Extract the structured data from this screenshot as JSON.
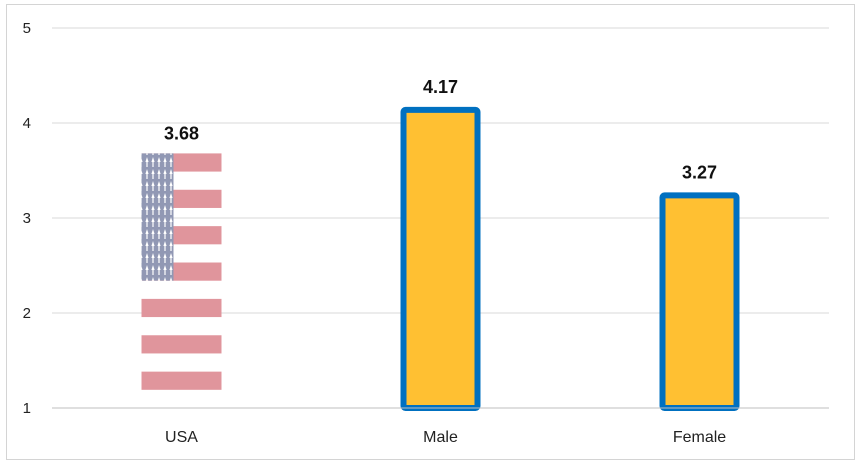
{
  "chart_data": {
    "type": "bar",
    "categories": [
      "USA",
      "Male",
      "Female"
    ],
    "values": [
      3.68,
      4.17,
      3.27
    ],
    "data_labels": [
      "3.68",
      "4.17",
      "3.27"
    ],
    "ylim": [
      1,
      5
    ],
    "yticks": [
      1,
      2,
      3,
      4,
      5
    ],
    "grid": true,
    "legend": "none",
    "bar_styles": [
      "us-flag-fill",
      "solid-fill",
      "solid-fill"
    ]
  },
  "colors": {
    "bar_fill": "#FFC032",
    "bar_border": "#0070C0",
    "flag_stripe": "#E0959C",
    "flag_canton": "#9198B4",
    "gridline": "#D9D9D9",
    "axis": "#BFBFBF"
  }
}
